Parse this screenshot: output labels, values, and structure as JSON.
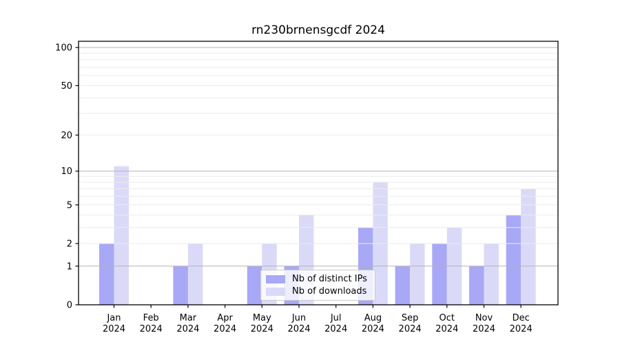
{
  "title": "rn230brnensgcdf 2024",
  "chart_data": {
    "type": "bar",
    "title": "rn230brnensgcdf 2024",
    "categories": [
      "Jan 2024",
      "Feb 2024",
      "Mar 2024",
      "Apr 2024",
      "May 2024",
      "Jun 2024",
      "Jul 2024",
      "Aug 2024",
      "Sep 2024",
      "Oct 2024",
      "Nov 2024",
      "Dec 2024"
    ],
    "series": [
      {
        "name": "Nb of distinct IPs",
        "color": "#a8a8f6",
        "values": [
          2,
          0,
          1,
          0,
          1,
          1,
          0,
          3,
          1,
          2,
          1,
          4
        ]
      },
      {
        "name": "Nb of downloads",
        "color": "#dadaf8",
        "values": [
          11,
          0,
          2,
          0,
          2,
          4,
          0,
          8,
          2,
          3,
          2,
          7
        ]
      }
    ],
    "xlabel": "",
    "ylabel": "",
    "yscale": "log1p",
    "ylim": [
      0,
      112
    ],
    "y_tick_labels": [
      "0",
      "1",
      "2",
      "5",
      "10",
      "20",
      "50",
      "100"
    ],
    "y_tick_values": [
      0,
      1,
      2,
      5,
      10,
      20,
      50,
      100
    ],
    "y_major_gridlines": [
      1,
      10,
      100
    ],
    "y_minor_gridlines": [
      2,
      3,
      4,
      5,
      6,
      7,
      8,
      9,
      20,
      30,
      40,
      50,
      60,
      70,
      80,
      90
    ],
    "grid": true,
    "legend_position": "lower center",
    "legend_entries": [
      "Nb of distinct IPs",
      "Nb of downloads"
    ]
  },
  "colors": {
    "bar_distinct_ips": "#a8a8f6",
    "bar_downloads": "#dadaf8",
    "major_grid": "#b3b3b3",
    "minor_grid": "#ebebeb",
    "axis": "#000000",
    "legend_border": "#cccccc",
    "background": "#ffffff"
  }
}
